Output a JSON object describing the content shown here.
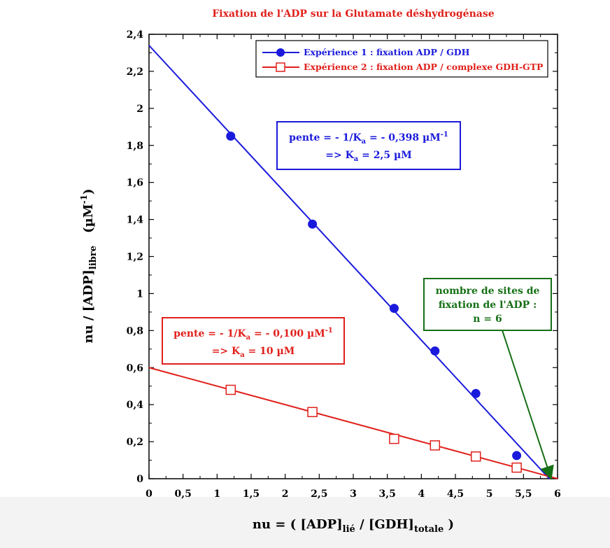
{
  "chart_data": {
    "type": "scatter",
    "title": "Fixation de l'ADP sur la Glutamate déshydrogénase",
    "xlabel": {
      "main": "nu = ( [ADP]",
      "sub1": "lié",
      "mid": " / [GDH]",
      "sub2": "totale",
      "end": " )"
    },
    "ylabel": {
      "main": "nu / [ADP]",
      "sub": "libre",
      "unit": "(µM",
      "sup": "-1",
      "unitEnd": ")"
    },
    "xlim": [
      0,
      6
    ],
    "ylim": [
      0,
      2.4
    ],
    "x_ticks": [
      "0",
      "0,5",
      "1",
      "1,5",
      "2",
      "2,5",
      "3",
      "3,5",
      "4",
      "4,5",
      "5",
      "5,5",
      "6"
    ],
    "y_ticks": [
      "0",
      "0,2",
      "0,4",
      "0,6",
      "0,8",
      "1",
      "1,2",
      "1,4",
      "1,6",
      "1,8",
      "2",
      "2,2",
      "2,4"
    ],
    "grid": false,
    "legend_position": "top-right",
    "series": [
      {
        "name": "Expérience 1 : fixation ADP / GDH",
        "color": "#1a1adc",
        "marker": "filled-circle",
        "x": [
          1.2,
          2.4,
          3.6,
          4.2,
          4.8,
          5.4
        ],
        "y": [
          1.85,
          1.375,
          0.92,
          0.69,
          0.46,
          0.125
        ],
        "fit": {
          "intercept": 2.34,
          "slope": -0.398
        }
      },
      {
        "name": "Expérience 2 : fixation ADP / complexe GDH-GTP",
        "color": "#e0201b",
        "marker": "open-square",
        "x": [
          1.2,
          2.4,
          3.6,
          4.2,
          4.8,
          5.4
        ],
        "y": [
          0.48,
          0.36,
          0.215,
          0.18,
          0.12,
          0.06
        ],
        "fit": {
          "intercept": 0.6,
          "slope": -0.1
        }
      }
    ],
    "annotations": {
      "blue": {
        "line1": "pente = - 1/K",
        "line1_sub": "a",
        "line1_end": " = - 0,398 µM",
        "line1_sup": "-1",
        "line2": "=> K",
        "line2_sub": "a",
        "line2_end": " = 2,5 µM"
      },
      "red": {
        "line1": "pente = - 1/K",
        "line1_sub": "a",
        "line1_end": " = - 0,100 µM",
        "line1_sup": "-1",
        "line2": "=> K",
        "line2_sub": "a",
        "line2_end": " = 10 µM"
      },
      "green": {
        "lines": [
          "nombre de sites de",
          "fixation de l'ADP :",
          "n = 6"
        ],
        "points_to_x": 5.92,
        "color": "#167016"
      }
    }
  }
}
